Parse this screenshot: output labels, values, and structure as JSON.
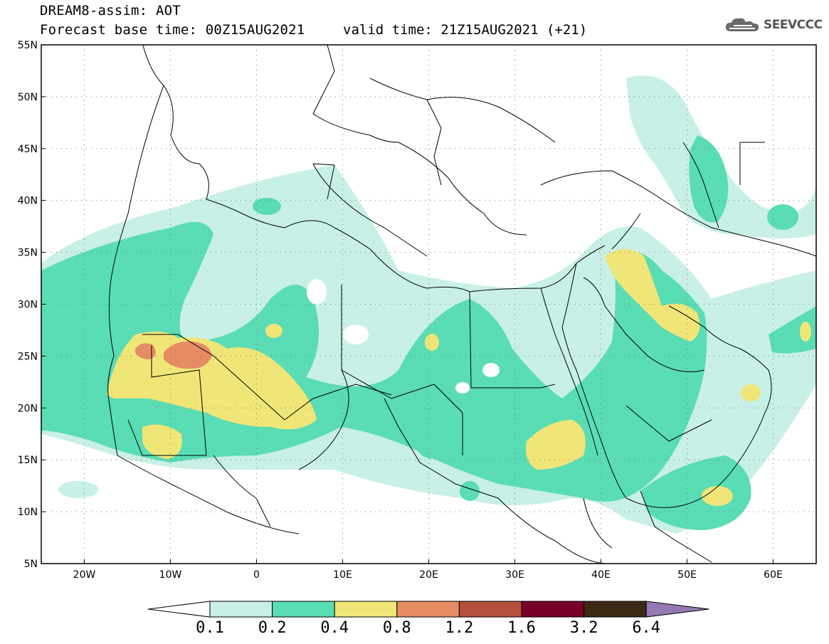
{
  "header": {
    "title": "DREAM8-assim: AOT",
    "base_time": "Forecast base time: 00Z15AUG2021",
    "valid_time": "valid time: 21Z15AUG2021 (+21)",
    "logo_text": "SEEVCCC"
  },
  "map": {
    "lon_range": [
      -25,
      65
    ],
    "lat_range": [
      5,
      55
    ],
    "lat_ticks": [
      "5N",
      "10N",
      "15N",
      "20N",
      "25N",
      "30N",
      "35N",
      "40N",
      "45N",
      "50N",
      "55N"
    ],
    "lon_ticks": [
      "20W",
      "10W",
      "0",
      "10E",
      "20E",
      "30E",
      "40E",
      "50E",
      "60E"
    ],
    "grid": "dotted",
    "variable": "Aerosol Optical Thickness"
  },
  "colorbar": {
    "labels": [
      "0.1",
      "0.2",
      "0.4",
      "0.8",
      "1.2",
      "1.6",
      "3.2",
      "6.4"
    ],
    "colors": [
      "#c8f0e6",
      "#5adcb4",
      "#f0e678",
      "#e68c64",
      "#b4503c",
      "#780028",
      "#3c2814",
      "#9678b4"
    ]
  }
}
